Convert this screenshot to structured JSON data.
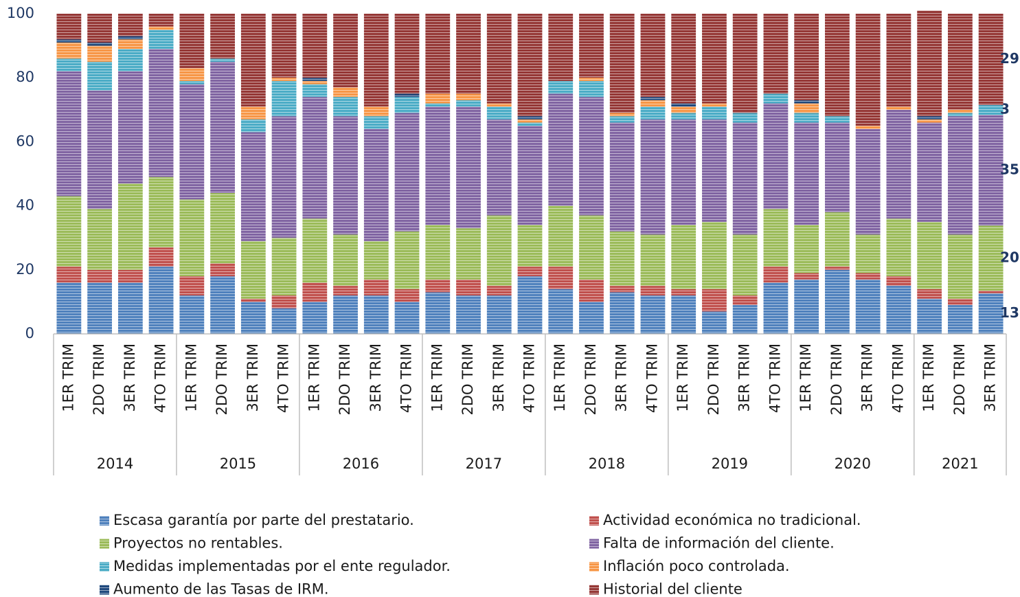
{
  "chart_data": {
    "type": "stacked_bar",
    "categories": [
      "1ER TRIM",
      "2DO TRIM",
      "3ER TRIM",
      "4TO TRIM",
      "1ER TRIM",
      "2DO TRIM",
      "3ER TRIM",
      "4TO TRIM",
      "1ER TRIM",
      "2DO TRIM",
      "3ER TRIM",
      "4TO TRIM",
      "1ER TRIM",
      "2DO TRIM",
      "3ER TRIM",
      "4TO TRIM",
      "1ER TRIM",
      "2DO TRIM",
      "3ER TRIM",
      "4TO TRIM",
      "1ER TRIM",
      "2DO TRIM",
      "3ER TRIM",
      "4TO TRIM",
      "1ER TRIM",
      "2DO TRIM",
      "3ER TRIM",
      "4TO TRIM",
      "1ER TRIM",
      "2DO TRIM",
      "3ER TRIM"
    ],
    "category_groups": [
      "2014",
      "2014",
      "2014",
      "2014",
      "2015",
      "2015",
      "2015",
      "2015",
      "2016",
      "2016",
      "2016",
      "2016",
      "2017",
      "2017",
      "2017",
      "2017",
      "2018",
      "2018",
      "2018",
      "2018",
      "2019",
      "2019",
      "2019",
      "2019",
      "2020",
      "2020",
      "2020",
      "2020",
      "2021",
      "2021",
      "2021"
    ],
    "ylim": [
      0,
      100
    ],
    "yticks": [
      0,
      20,
      40,
      60,
      80,
      100
    ],
    "grid": false,
    "series": [
      {
        "name": "Escasa garantía por parte del prestatario.",
        "color": "#4f81bd",
        "values": [
          16,
          16,
          16,
          21,
          12,
          18,
          10,
          8,
          10,
          12,
          12,
          10,
          13,
          12,
          12,
          18,
          14,
          10,
          13,
          12,
          12,
          7,
          9,
          16,
          17,
          20,
          17,
          15,
          11,
          9,
          12.7
        ],
        "value_labels": [
          null,
          null,
          null,
          null,
          null,
          null,
          null,
          null,
          null,
          null,
          null,
          null,
          null,
          null,
          null,
          null,
          null,
          null,
          null,
          null,
          null,
          null,
          null,
          null,
          null,
          null,
          null,
          null,
          null,
          null,
          "13"
        ]
      },
      {
        "name": "Actividad económica no tradicional.",
        "color": "#c0504d",
        "values": [
          5,
          4,
          4,
          6,
          6,
          4,
          1,
          4,
          6,
          3,
          5,
          4,
          4,
          5,
          3,
          3,
          7,
          7,
          2,
          3,
          2,
          7,
          3,
          5,
          2,
          1,
          2,
          3,
          3,
          2,
          0.8
        ]
      },
      {
        "name": "Proyectos no rentables.",
        "color": "#9bbb59",
        "values": [
          22,
          19,
          27,
          22,
          24,
          22,
          18,
          18,
          20,
          16,
          12,
          18,
          17,
          16,
          22,
          13,
          19,
          20,
          17,
          16,
          20,
          21,
          19,
          18,
          15,
          17,
          12,
          18,
          21,
          20,
          20.3
        ],
        "value_labels": [
          null,
          null,
          null,
          null,
          null,
          null,
          null,
          null,
          null,
          null,
          null,
          null,
          null,
          null,
          null,
          null,
          null,
          null,
          null,
          null,
          null,
          null,
          null,
          null,
          null,
          null,
          null,
          null,
          null,
          null,
          "20"
        ]
      },
      {
        "name": "Falta de información del cliente.",
        "color": "#8064a2",
        "values": [
          39,
          37,
          35,
          40,
          36,
          41,
          34,
          38,
          38,
          37,
          35,
          37,
          37,
          38,
          30,
          31,
          35,
          37,
          34,
          36,
          33,
          32,
          35,
          33,
          32,
          28,
          33,
          34,
          31,
          37,
          34.6
        ],
        "value_labels": [
          null,
          null,
          null,
          null,
          null,
          null,
          null,
          null,
          null,
          null,
          null,
          null,
          null,
          null,
          null,
          null,
          null,
          null,
          null,
          null,
          null,
          null,
          null,
          null,
          null,
          null,
          null,
          null,
          null,
          null,
          "35"
        ]
      },
      {
        "name": "Medidas implementadas por el ente regulador.",
        "color": "#4bacc6",
        "values": [
          4,
          9,
          7,
          6,
          1,
          1,
          4,
          11,
          4,
          6,
          4,
          5,
          1,
          2,
          4,
          1,
          4,
          5,
          2,
          4,
          2,
          4,
          3,
          3,
          3,
          2,
          0,
          0,
          0,
          1,
          3.1
        ],
        "value_labels": [
          null,
          null,
          null,
          null,
          null,
          null,
          null,
          null,
          null,
          null,
          null,
          null,
          null,
          null,
          null,
          null,
          null,
          null,
          null,
          null,
          null,
          null,
          null,
          null,
          null,
          null,
          null,
          null,
          null,
          null,
          "3"
        ]
      },
      {
        "name": "Inflación poco controlada.",
        "color": "#f79646",
        "values": [
          5,
          5,
          3,
          1,
          4,
          0,
          4,
          1,
          1,
          3,
          3,
          0,
          3,
          2,
          1,
          1,
          0,
          1,
          1,
          2,
          2,
          1,
          0,
          0,
          3,
          0,
          1,
          1,
          1,
          1,
          0
        ]
      },
      {
        "name": "Aumento de las Tasas de IRM.",
        "color": "#1f497d",
        "values": [
          1,
          1,
          1,
          0,
          0,
          0,
          0,
          0,
          1,
          0,
          0,
          1,
          0,
          0,
          0,
          1,
          0,
          0,
          0,
          1,
          1,
          0,
          0,
          0,
          1,
          0,
          0,
          0,
          1,
          0,
          0
        ]
      },
      {
        "name": "Historial del cliente",
        "color": "#953735",
        "values": [
          8,
          9,
          7,
          4,
          17,
          14,
          29,
          20,
          20,
          23,
          29,
          25,
          25,
          25,
          28,
          32,
          21,
          20,
          31,
          26,
          28,
          28,
          31,
          25,
          27,
          32,
          35,
          29,
          33,
          30,
          28.5
        ],
        "value_labels": [
          null,
          null,
          null,
          null,
          null,
          null,
          null,
          null,
          null,
          null,
          null,
          null,
          null,
          null,
          null,
          null,
          null,
          null,
          null,
          null,
          null,
          null,
          null,
          null,
          null,
          null,
          null,
          null,
          null,
          null,
          "29"
        ]
      }
    ]
  }
}
